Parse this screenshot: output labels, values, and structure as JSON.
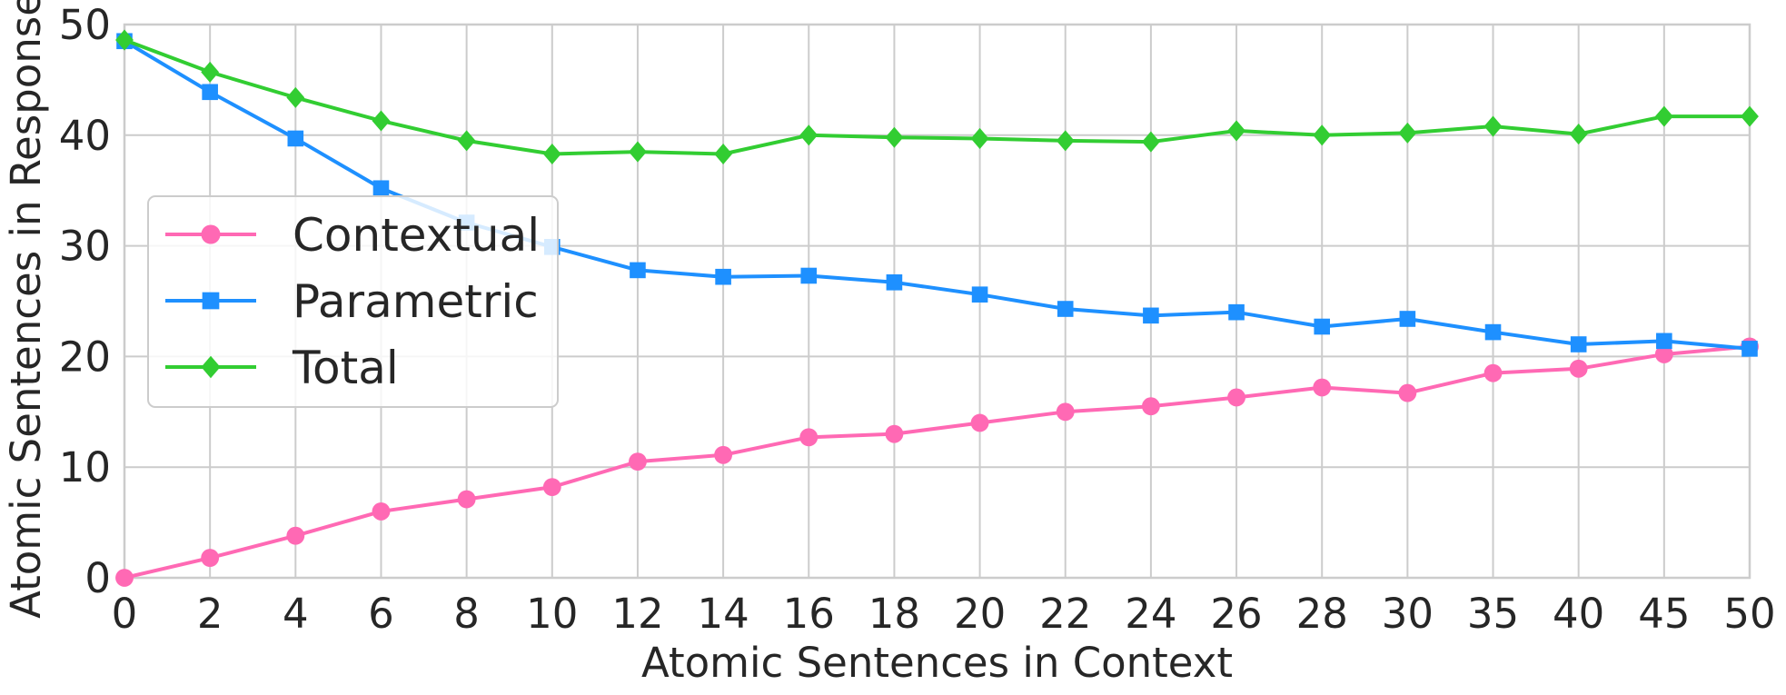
{
  "chart_data": {
    "type": "line",
    "xlabel": "Atomic Sentences in Context",
    "ylabel": "Atomic Sentences in Response",
    "categories": [
      "0",
      "2",
      "4",
      "6",
      "8",
      "10",
      "12",
      "14",
      "16",
      "18",
      "20",
      "22",
      "24",
      "26",
      "28",
      "30",
      "35",
      "40",
      "45",
      "50"
    ],
    "ylim": [
      0,
      50
    ],
    "yticks": [
      0,
      10,
      20,
      30,
      40,
      50
    ],
    "grid": true,
    "legend_position": "center-left",
    "series": [
      {
        "name": "Contextual",
        "color": "#ff69b4",
        "marker": "circle",
        "values": [
          0,
          1.8,
          3.8,
          6.0,
          7.1,
          8.2,
          10.5,
          11.1,
          12.7,
          13.0,
          14.0,
          15.0,
          15.5,
          16.3,
          17.2,
          16.7,
          18.5,
          18.9,
          20.2,
          20.9
        ]
      },
      {
        "name": "Parametric",
        "color": "#1e90ff",
        "marker": "square",
        "values": [
          48.5,
          43.9,
          39.7,
          35.2,
          32.1,
          29.9,
          27.8,
          27.2,
          27.3,
          26.7,
          25.6,
          24.3,
          23.7,
          24.0,
          22.7,
          23.4,
          22.2,
          21.1,
          21.4,
          20.7
        ]
      },
      {
        "name": "Total",
        "color": "#32cd32",
        "marker": "diamond",
        "values": [
          48.6,
          45.7,
          43.4,
          41.3,
          39.5,
          38.3,
          38.5,
          38.3,
          40.0,
          39.8,
          39.7,
          39.5,
          39.4,
          40.4,
          40.0,
          40.2,
          40.8,
          40.1,
          41.7,
          41.7
        ]
      }
    ]
  }
}
